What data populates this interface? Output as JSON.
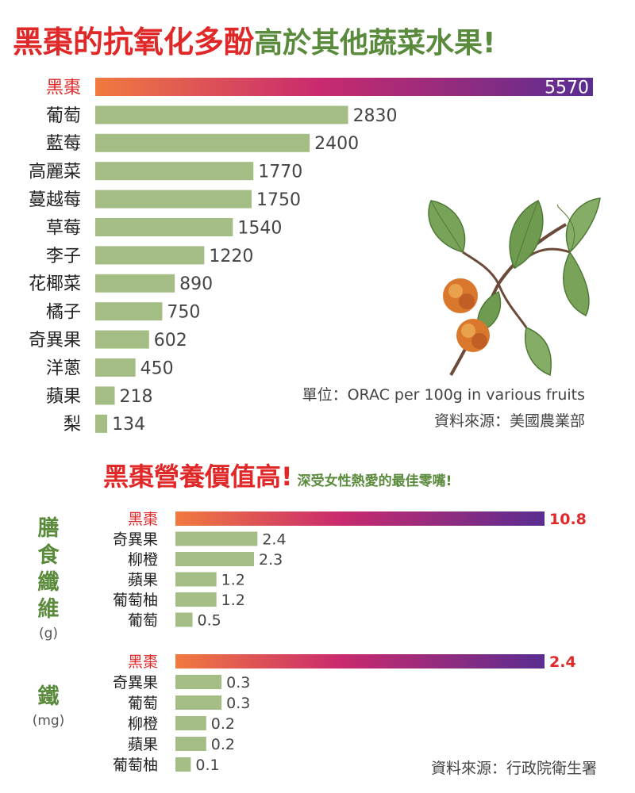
{
  "headline": {
    "red_part": "黑棗的抗氧化多酚",
    "green_part": "高於其他蔬菜水果!"
  },
  "unit_note": "單位：ORAC per 100g in various fruits",
  "source1": "資料來源：美國農業部",
  "section2": {
    "title": "黑棗營養價值高!",
    "subtitle": "深受女性熱愛的最佳零嘴!"
  },
  "fiber_label": {
    "name": "膳食纖維",
    "unit": "(g)"
  },
  "iron_label": {
    "name": "鐵",
    "unit": "(mg)"
  },
  "source2": "資料來源：行政院衛生署",
  "colors": {
    "bar": "#a4bd85",
    "highlight_start": "#f07a3f",
    "highlight_mid": "#c92a6e",
    "highlight_end": "#5a2d91",
    "label_red": "#e02828",
    "title_red": "#e02828",
    "title_green": "#5a8a3c"
  },
  "chart_data": [
    {
      "type": "bar",
      "title": "黑棗的抗氧化多酚高於其他蔬菜水果!",
      "categories": [
        "黑棗",
        "葡萄",
        "藍莓",
        "高麗菜",
        "蔓越莓",
        "草莓",
        "李子",
        "花椰菜",
        "橘子",
        "奇異果",
        "洋蔥",
        "蘋果",
        "梨"
      ],
      "values": [
        5570,
        2830,
        2400,
        1770,
        1750,
        1540,
        1220,
        890,
        750,
        602,
        450,
        218,
        134
      ],
      "highlight": "黑棗",
      "unit": "ORAC per 100g"
    },
    {
      "type": "bar",
      "title": "膳食纖維",
      "categories": [
        "黑棗",
        "奇異果",
        "柳橙",
        "蘋果",
        "葡萄柚",
        "葡萄"
      ],
      "values": [
        10.8,
        2.4,
        2.3,
        1.2,
        1.2,
        0.5
      ],
      "highlight": "黑棗",
      "unit": "(g)"
    },
    {
      "type": "bar",
      "title": "鐵",
      "categories": [
        "黑棗",
        "奇異果",
        "葡萄",
        "柳橙",
        "蘋果",
        "葡萄柚"
      ],
      "values": [
        2.4,
        0.3,
        0.3,
        0.2,
        0.2,
        0.1
      ],
      "highlight": "黑棗",
      "unit": "(mg)"
    }
  ]
}
